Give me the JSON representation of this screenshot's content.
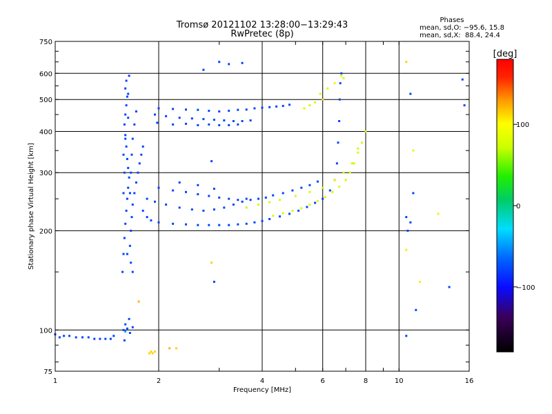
{
  "chart_data": {
    "type": "scatter",
    "title": "Tromsø 20121102 13:28:00−13:29:43",
    "subtitle": "RwPretec (8p)",
    "xlabel": "Frequency [MHz]",
    "ylabel": "Stationary phase Virtual Height [km]",
    "xscale": "log",
    "yscale": "log",
    "xlim": [
      1,
      16
    ],
    "ylim": [
      75,
      750
    ],
    "xticks": [
      {
        "value": 1,
        "label": "1"
      },
      {
        "value": 2,
        "label": "2"
      },
      {
        "value": 4,
        "label": "4"
      },
      {
        "value": 6,
        "label": "6"
      },
      {
        "value": 8,
        "label": "8"
      },
      {
        "value": 10,
        "label": "10"
      },
      {
        "value": 16,
        "label": "16"
      }
    ],
    "yticks": [
      {
        "value": 75,
        "label": "75"
      },
      {
        "value": 100,
        "label": "100"
      },
      {
        "value": 200,
        "label": "200"
      },
      {
        "value": 300,
        "label": "300"
      },
      {
        "value": 400,
        "label": "400"
      },
      {
        "value": 500,
        "label": "500"
      },
      {
        "value": 600,
        "label": "600"
      },
      {
        "value": 750,
        "label": "750"
      }
    ],
    "grid": true,
    "phases": {
      "title": "Phases",
      "line_o": "mean, sd,O: −95.6, 15.8",
      "line_x": "mean, sd,X:  88.4, 24.4"
    },
    "colorbar": {
      "label": "[deg]",
      "range": [
        -180,
        180
      ],
      "ticks": [
        {
          "value": 100,
          "label": "100"
        },
        {
          "value": 0,
          "label": "0"
        },
        {
          "value": -100,
          "label": "−100"
        }
      ]
    },
    "points": [
      [
        1.0,
        97,
        -95
      ],
      [
        1.03,
        95,
        -95
      ],
      [
        1.06,
        96,
        -95
      ],
      [
        1.1,
        96,
        -95
      ],
      [
        1.15,
        95,
        -95
      ],
      [
        1.2,
        95,
        -95
      ],
      [
        1.25,
        95,
        -95
      ],
      [
        1.3,
        94,
        -95
      ],
      [
        1.35,
        94,
        -95
      ],
      [
        1.4,
        94,
        -95
      ],
      [
        1.45,
        94,
        -95
      ],
      [
        1.48,
        96,
        -95
      ],
      [
        1.58,
        100,
        -95
      ],
      [
        1.6,
        99,
        -60
      ],
      [
        1.62,
        101,
        -95
      ],
      [
        1.65,
        98,
        -95
      ],
      [
        1.68,
        102,
        -95
      ],
      [
        1.6,
        104,
        -95
      ],
      [
        1.59,
        93,
        -95
      ],
      [
        1.64,
        108,
        -95
      ],
      [
        1.9,
        86,
        120
      ],
      [
        1.92,
        85,
        120
      ],
      [
        1.88,
        85,
        120
      ],
      [
        1.95,
        86,
        120
      ],
      [
        2.15,
        88,
        130
      ],
      [
        2.25,
        88,
        120
      ],
      [
        1.75,
        122,
        130
      ],
      [
        1.57,
        150,
        -95
      ],
      [
        1.58,
        170,
        -95
      ],
      [
        1.59,
        190,
        -95
      ],
      [
        1.6,
        210,
        -95
      ],
      [
        1.61,
        230,
        -95
      ],
      [
        1.62,
        250,
        -95
      ],
      [
        1.63,
        270,
        -95
      ],
      [
        1.64,
        290,
        -95
      ],
      [
        1.63,
        310,
        -95
      ],
      [
        1.62,
        330,
        -95
      ],
      [
        1.61,
        360,
        -95
      ],
      [
        1.6,
        390,
        -95
      ],
      [
        1.59,
        420,
        -95
      ],
      [
        1.6,
        450,
        -95
      ],
      [
        1.61,
        480,
        -95
      ],
      [
        1.62,
        510,
        -95
      ],
      [
        1.6,
        540,
        -95
      ],
      [
        1.61,
        570,
        -95
      ],
      [
        1.64,
        590,
        -95
      ],
      [
        1.62,
        170,
        -95
      ],
      [
        1.65,
        180,
        -95
      ],
      [
        1.66,
        200,
        -95
      ],
      [
        1.67,
        220,
        -95
      ],
      [
        1.68,
        240,
        -95
      ],
      [
        1.7,
        260,
        -95
      ],
      [
        1.72,
        280,
        -95
      ],
      [
        1.74,
        300,
        -95
      ],
      [
        1.76,
        320,
        -95
      ],
      [
        1.78,
        340,
        -95
      ],
      [
        1.8,
        360,
        -95
      ],
      [
        1.66,
        160,
        -95
      ],
      [
        1.68,
        150,
        -95
      ],
      [
        1.65,
        260,
        -95
      ],
      [
        1.66,
        300,
        -95
      ],
      [
        1.67,
        340,
        -95
      ],
      [
        1.68,
        380,
        -95
      ],
      [
        1.7,
        420,
        -95
      ],
      [
        1.72,
        460,
        -95
      ],
      [
        1.58,
        260,
        -95
      ],
      [
        1.59,
        300,
        -95
      ],
      [
        1.58,
        340,
        -95
      ],
      [
        1.6,
        380,
        -95
      ],
      [
        1.63,
        440,
        -95
      ],
      [
        1.63,
        520,
        -95
      ],
      [
        1.8,
        230,
        -95
      ],
      [
        1.85,
        220,
        -95
      ],
      [
        1.9,
        215,
        -95
      ],
      [
        2.0,
        212,
        -95
      ],
      [
        2.2,
        210,
        -95
      ],
      [
        2.4,
        209,
        -95
      ],
      [
        2.6,
        208,
        -95
      ],
      [
        2.8,
        208,
        -95
      ],
      [
        3.0,
        208,
        -95
      ],
      [
        3.2,
        208,
        -95
      ],
      [
        3.4,
        209,
        -95
      ],
      [
        3.6,
        210,
        -95
      ],
      [
        3.8,
        212,
        -95
      ],
      [
        4.0,
        214,
        -95
      ],
      [
        4.2,
        217,
        -95
      ],
      [
        4.5,
        221,
        -95
      ],
      [
        4.8,
        225,
        -95
      ],
      [
        5.1,
        230,
        -95
      ],
      [
        5.4,
        236,
        -95
      ],
      [
        5.7,
        243,
        -95
      ],
      [
        6.0,
        250,
        -95
      ],
      [
        6.3,
        265,
        -95
      ],
      [
        6.5,
        285,
        -95
      ],
      [
        6.6,
        320,
        -95
      ],
      [
        6.65,
        370,
        -95
      ],
      [
        6.7,
        430,
        -95
      ],
      [
        6.72,
        500,
        -95
      ],
      [
        6.75,
        560,
        -95
      ],
      [
        6.8,
        600,
        -95
      ],
      [
        1.85,
        250,
        -95
      ],
      [
        1.95,
        245,
        -95
      ],
      [
        2.1,
        240,
        -95
      ],
      [
        2.3,
        235,
        -95
      ],
      [
        2.5,
        232,
        -95
      ],
      [
        2.7,
        230,
        -95
      ],
      [
        2.9,
        232,
        -95
      ],
      [
        3.1,
        235,
        -95
      ],
      [
        3.3,
        240,
        -95
      ],
      [
        3.5,
        245,
        -95
      ],
      [
        3.7,
        248,
        -95
      ],
      [
        3.9,
        250,
        -95
      ],
      [
        4.1,
        252,
        -95
      ],
      [
        4.3,
        256,
        -95
      ],
      [
        4.6,
        260,
        -95
      ],
      [
        4.9,
        265,
        -95
      ],
      [
        5.2,
        270,
        -95
      ],
      [
        5.5,
        275,
        -95
      ],
      [
        5.8,
        282,
        -95
      ],
      [
        2.0,
        270,
        -95
      ],
      [
        2.2,
        265,
        -95
      ],
      [
        2.4,
        262,
        -95
      ],
      [
        2.6,
        258,
        -95
      ],
      [
        2.8,
        255,
        -95
      ],
      [
        3.0,
        252,
        -95
      ],
      [
        3.2,
        250,
        -95
      ],
      [
        3.4,
        248,
        -95
      ],
      [
        3.6,
        250,
        -95
      ],
      [
        2.3,
        280,
        -95
      ],
      [
        2.6,
        275,
        -95
      ],
      [
        2.9,
        268,
        -95
      ],
      [
        4.3,
        222,
        90
      ],
      [
        4.6,
        226,
        100
      ],
      [
        4.9,
        230,
        95
      ],
      [
        5.2,
        234,
        90
      ],
      [
        5.5,
        240,
        95
      ],
      [
        5.8,
        246,
        100
      ],
      [
        6.1,
        253,
        90
      ],
      [
        6.4,
        262,
        95
      ],
      [
        6.7,
        272,
        100
      ],
      [
        7.0,
        285,
        90
      ],
      [
        7.2,
        300,
        95
      ],
      [
        7.4,
        320,
        90
      ],
      [
        7.6,
        345,
        100
      ],
      [
        7.8,
        370,
        90
      ],
      [
        8.0,
        400,
        95
      ],
      [
        3.6,
        235,
        80
      ],
      [
        3.9,
        240,
        90
      ],
      [
        4.2,
        244,
        95
      ],
      [
        4.5,
        248,
        90
      ],
      [
        5.0,
        255,
        100
      ],
      [
        5.5,
        262,
        95
      ],
      [
        6.0,
        270,
        90
      ],
      [
        6.5,
        285,
        100
      ],
      [
        6.9,
        300,
        95
      ],
      [
        7.3,
        320,
        85
      ],
      [
        7.6,
        355,
        90
      ],
      [
        5.3,
        470,
        100
      ],
      [
        5.5,
        480,
        90
      ],
      [
        5.7,
        490,
        95
      ],
      [
        6.0,
        500,
        120
      ],
      [
        5.9,
        520,
        100
      ],
      [
        6.2,
        540,
        90
      ],
      [
        6.5,
        560,
        110
      ],
      [
        6.8,
        590,
        95
      ],
      [
        6.9,
        580,
        90
      ],
      [
        1.95,
        450,
        -95
      ],
      [
        2.1,
        445,
        -95
      ],
      [
        2.3,
        440,
        -95
      ],
      [
        2.5,
        438,
        -95
      ],
      [
        2.7,
        436,
        -95
      ],
      [
        2.9,
        434,
        -95
      ],
      [
        3.1,
        432,
        -95
      ],
      [
        3.3,
        430,
        -95
      ],
      [
        3.5,
        430,
        -95
      ],
      [
        3.7,
        432,
        -95
      ],
      [
        1.98,
        425,
        -95
      ],
      [
        2.2,
        420,
        -95
      ],
      [
        2.4,
        422,
        -95
      ],
      [
        2.6,
        418,
        -95
      ],
      [
        2.8,
        420,
        -95
      ],
      [
        3.0,
        418,
        -95
      ],
      [
        3.2,
        418,
        -95
      ],
      [
        3.4,
        420,
        -95
      ],
      [
        2.0,
        470,
        -95
      ],
      [
        2.2,
        468,
        -95
      ],
      [
        2.4,
        466,
        -95
      ],
      [
        2.6,
        465,
        -95
      ],
      [
        2.8,
        462,
        -95
      ],
      [
        3.0,
        460,
        -95
      ],
      [
        3.2,
        462,
        -95
      ],
      [
        3.4,
        465,
        -95
      ],
      [
        3.6,
        466,
        -95
      ],
      [
        3.8,
        470,
        -95
      ],
      [
        4.0,
        472,
        -95
      ],
      [
        4.2,
        474,
        -95
      ],
      [
        4.4,
        476,
        -95
      ],
      [
        4.6,
        478,
        -95
      ],
      [
        4.8,
        482,
        -95
      ],
      [
        2.7,
        615,
        -95
      ],
      [
        3.0,
        650,
        -95
      ],
      [
        3.2,
        640,
        -95
      ],
      [
        3.5,
        645,
        -95
      ],
      [
        2.85,
        325,
        -95
      ],
      [
        2.9,
        140,
        -95
      ],
      [
        2.85,
        160,
        120
      ],
      [
        10.5,
        650,
        120
      ],
      [
        10.8,
        520,
        -95
      ],
      [
        11.0,
        350,
        100
      ],
      [
        11.0,
        260,
        -95
      ],
      [
        10.5,
        220,
        -95
      ],
      [
        10.6,
        200,
        -95
      ],
      [
        10.8,
        212,
        -95
      ],
      [
        10.5,
        175,
        110
      ],
      [
        11.5,
        140,
        110
      ],
      [
        11.2,
        115,
        -95
      ],
      [
        10.5,
        96,
        -95
      ],
      [
        13.0,
        225,
        110
      ],
      [
        14.0,
        135,
        -95
      ],
      [
        15.5,
        480,
        -95
      ],
      [
        15.3,
        575,
        -95
      ]
    ]
  }
}
